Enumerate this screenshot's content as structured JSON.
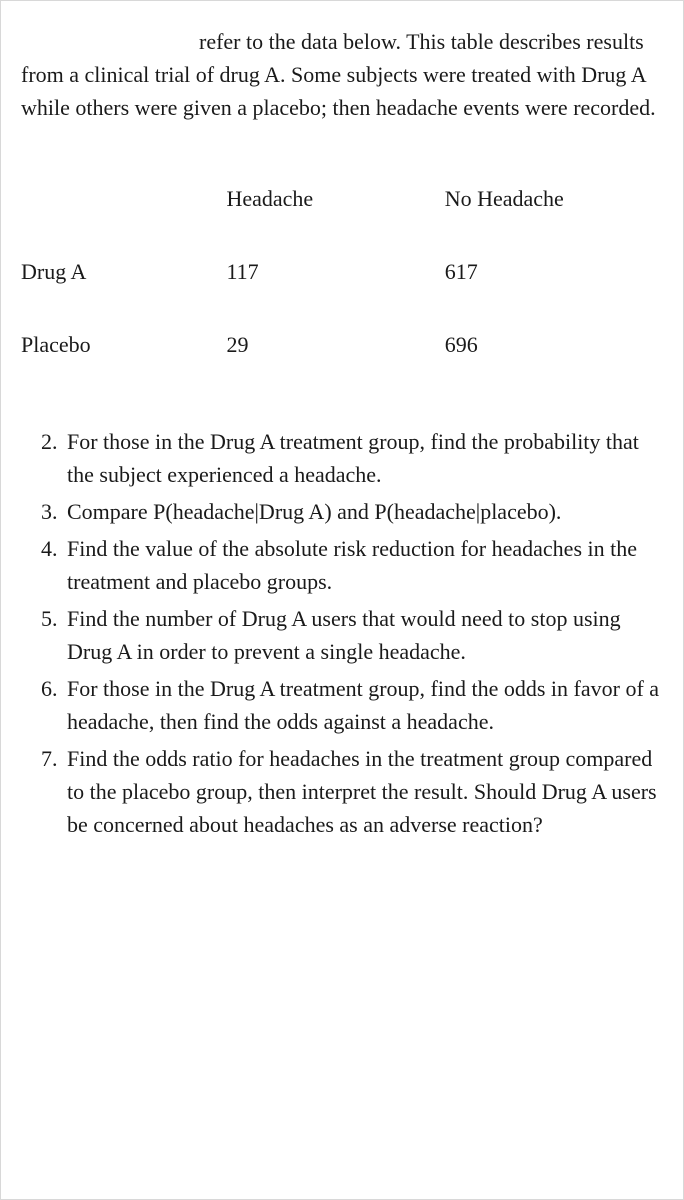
{
  "intro": {
    "text": "refer to the data below. This table describes results from a clinical trial of drug A. Some subjects were treated with Drug A while others were given a placebo; then headache events were recorded."
  },
  "table": {
    "columns": [
      "",
      "Headache",
      "No Headache"
    ],
    "rows": [
      [
        "Drug A",
        "117",
        "617"
      ],
      [
        "Placebo",
        "29",
        "696"
      ]
    ]
  },
  "questions": {
    "start": 2,
    "items": [
      "For those in the Drug A treatment group, find the probability that the subject experienced a headache.",
      "Compare P(headache|Drug A) and P(headache|placebo).",
      "Find the value of the absolute risk reduction for headaches in the treatment and placebo groups.",
      "Find the number of Drug A users that would need to stop using Drug A in order to prevent a single headache.",
      "For those in the Drug A treatment group, find the odds in favor of a headache, then find the odds against a headache.",
      "Find the odds ratio for headaches in the treatment group compared to the placebo group, then interpret the result. Should Drug A users be concerned about headaches as an adverse reaction?"
    ]
  }
}
